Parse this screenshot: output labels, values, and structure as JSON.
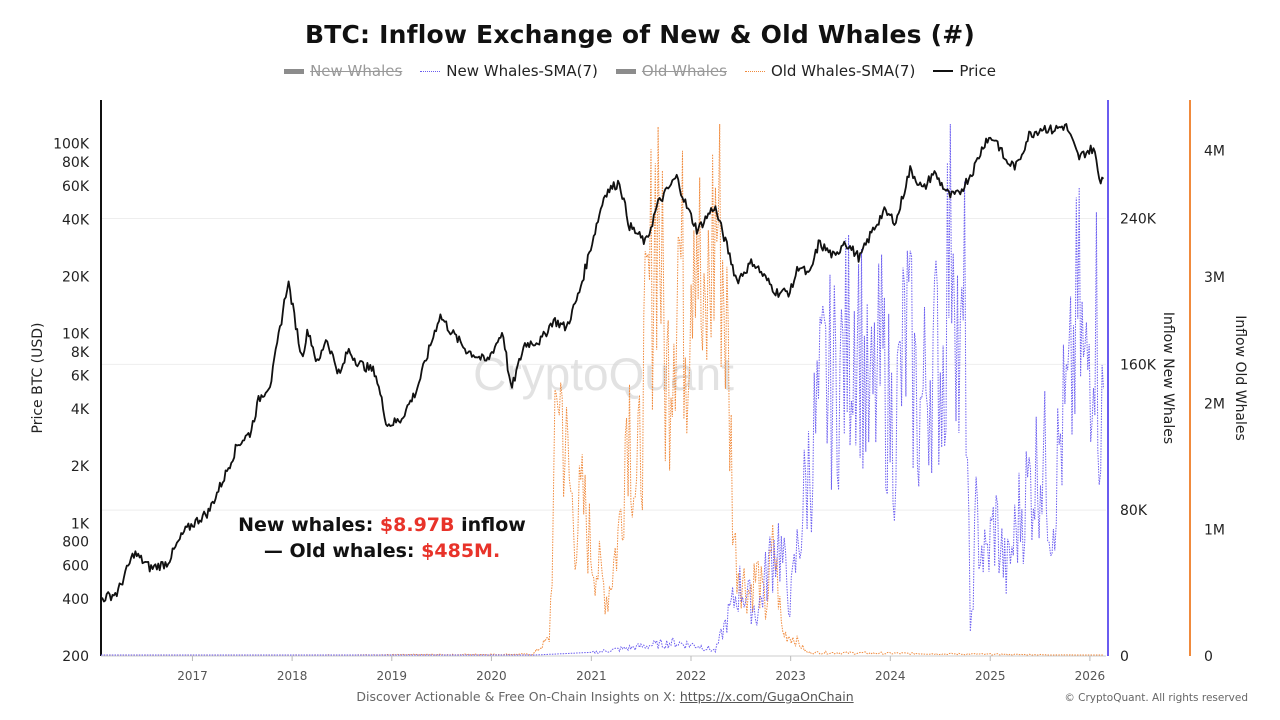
{
  "header": {
    "title": "BTC: Inflow Exchange of New & Old Whales (#)"
  },
  "legend": [
    {
      "label": "New Whales",
      "state": "hidden"
    },
    {
      "label": "New Whales-SMA(7)",
      "state": "visible"
    },
    {
      "label": "Old Whales",
      "state": "hidden"
    },
    {
      "label": "Old Whales-SMA(7)",
      "state": "visible"
    },
    {
      "label": "Price",
      "state": "visible"
    }
  ],
  "annotation": {
    "line1_prefix": "New whales: ",
    "line1_value": "$8.97B",
    "line1_suffix": " inflow",
    "line2_prefix": "— Old whales: ",
    "line2_value": "$485M."
  },
  "watermark": "CryptoQuant",
  "footer": {
    "text": "Discover Actionable & Free On-Chain Insights on X: ",
    "link": "https://x.com/GugaOnChain",
    "copyright": "© CryptoQuant. All rights reserved"
  },
  "colors": {
    "price": "#111111",
    "new_whales": "#6a5cf0",
    "old_whales": "#f08a3c",
    "highlight": "#e8332a"
  },
  "chart_data": {
    "type": "line",
    "x_range": [
      "2016-02",
      "2026-03"
    ],
    "x_ticks": [
      "2017",
      "2018",
      "2019",
      "2020",
      "2021",
      "2022",
      "2023",
      "2024",
      "2025",
      "2026"
    ],
    "axes": {
      "left": {
        "label": "Price BTC (USD)",
        "scale": "log",
        "range": [
          200,
          170000
        ],
        "ticks": [
          "200",
          "400",
          "600",
          "800",
          "1K",
          "2K",
          "4K",
          "6K",
          "8K",
          "10K",
          "20K",
          "40K",
          "60K",
          "80K",
          "100K"
        ]
      },
      "right_new": {
        "label": "Inflow New Whales",
        "scale": "linear",
        "range": [
          0,
          305000
        ],
        "ticks": [
          "0",
          "80K",
          "160K",
          "240K"
        ]
      },
      "right_old": {
        "label": "Inflow Old Whales",
        "scale": "linear",
        "range": [
          0,
          4400000
        ],
        "ticks": [
          "0",
          "1M",
          "2M",
          "3M",
          "4M"
        ]
      }
    },
    "series": [
      {
        "name": "Price",
        "axis": "left",
        "style": "solid",
        "points": [
          [
            "2016-02-01",
            400
          ],
          [
            "2016-04-01",
            430
          ],
          [
            "2016-06-01",
            700
          ],
          [
            "2016-08-01",
            580
          ],
          [
            "2016-10-01",
            620
          ],
          [
            "2016-12-01",
            900
          ],
          [
            "2017-01-05",
            1000
          ],
          [
            "2017-03-01",
            1150
          ],
          [
            "2017-05-01",
            1800
          ],
          [
            "2017-06-15",
            2600
          ],
          [
            "2017-08-01",
            3000
          ],
          [
            "2017-09-01",
            4500
          ],
          [
            "2017-10-15",
            5500
          ],
          [
            "2017-12-17",
            19000
          ],
          [
            "2018-02-05",
            7500
          ],
          [
            "2018-03-01",
            10500
          ],
          [
            "2018-04-05",
            6800
          ],
          [
            "2018-05-05",
            9500
          ],
          [
            "2018-06-25",
            6000
          ],
          [
            "2018-07-25",
            8200
          ],
          [
            "2018-09-01",
            7000
          ],
          [
            "2018-11-01",
            6300
          ],
          [
            "2018-12-15",
            3300
          ],
          [
            "2019-02-01",
            3500
          ],
          [
            "2019-04-01",
            5000
          ],
          [
            "2019-06-26",
            12500
          ],
          [
            "2019-08-01",
            10500
          ],
          [
            "2019-10-01",
            8200
          ],
          [
            "2019-12-15",
            7100
          ],
          [
            "2020-02-12",
            10300
          ],
          [
            "2020-03-13",
            5000
          ],
          [
            "2020-05-01",
            8800
          ],
          [
            "2020-07-01",
            9200
          ],
          [
            "2020-08-15",
            11800
          ],
          [
            "2020-10-01",
            10700
          ],
          [
            "2020-11-15",
            16000
          ],
          [
            "2020-12-31",
            29000
          ],
          [
            "2021-02-20",
            55000
          ],
          [
            "2021-04-14",
            63000
          ],
          [
            "2021-05-20",
            37000
          ],
          [
            "2021-07-20",
            30000
          ],
          [
            "2021-09-01",
            48000
          ],
          [
            "2021-11-09",
            67000
          ],
          [
            "2021-12-15",
            47000
          ],
          [
            "2022-01-24",
            35000
          ],
          [
            "2022-03-28",
            47000
          ],
          [
            "2022-05-12",
            29000
          ],
          [
            "2022-06-18",
            19000
          ],
          [
            "2022-08-15",
            24000
          ],
          [
            "2022-10-01",
            19500
          ],
          [
            "2022-11-10",
            16500
          ],
          [
            "2022-12-31",
            16600
          ],
          [
            "2023-01-31",
            23000
          ],
          [
            "2023-03-10",
            20000
          ],
          [
            "2023-04-14",
            30000
          ],
          [
            "2023-06-15",
            25000
          ],
          [
            "2023-07-14",
            31000
          ],
          [
            "2023-09-11",
            25000
          ],
          [
            "2023-10-24",
            34000
          ],
          [
            "2023-12-08",
            44000
          ],
          [
            "2024-01-23",
            39000
          ],
          [
            "2024-02-28",
            62000
          ],
          [
            "2024-03-14",
            73000
          ],
          [
            "2024-05-01",
            57000
          ],
          [
            "2024-06-07",
            71000
          ],
          [
            "2024-08-05",
            53000
          ],
          [
            "2024-09-06",
            54000
          ],
          [
            "2024-10-29",
            72000
          ],
          [
            "2024-12-17",
            106000
          ],
          [
            "2025-01-21",
            106000
          ],
          [
            "2025-02-28",
            80000
          ],
          [
            "2025-04-08",
            76000
          ],
          [
            "2025-05-22",
            111000
          ],
          [
            "2025-07-14",
            122000
          ],
          [
            "2025-08-15",
            118000
          ],
          [
            "2025-10-06",
            125000
          ],
          [
            "2025-11-21",
            84000
          ],
          [
            "2025-12-15",
            90000
          ],
          [
            "2026-01-15",
            95000
          ],
          [
            "2026-02-05",
            65000
          ],
          [
            "2026-02-20",
            67000
          ]
        ]
      },
      {
        "name": "New Whales-SMA(7)",
        "axis": "right_new",
        "style": "dotted",
        "points": [
          [
            "2016-02-01",
            0
          ],
          [
            "2020-06-01",
            500
          ],
          [
            "2021-01-01",
            2000
          ],
          [
            "2021-06-01",
            5000
          ],
          [
            "2021-11-01",
            8000
          ],
          [
            "2022-02-01",
            6000
          ],
          [
            "2022-04-01",
            3000
          ],
          [
            "2022-06-01",
            30000
          ],
          [
            "2022-07-01",
            42000
          ],
          [
            "2022-09-01",
            25000
          ],
          [
            "2022-10-15",
            55000
          ],
          [
            "2022-11-15",
            70000
          ],
          [
            "2023-01-01",
            32000
          ],
          [
            "2023-03-01",
            105000
          ],
          [
            "2023-05-01",
            160000
          ],
          [
            "2023-07-01",
            165000
          ],
          [
            "2023-09-01",
            210000
          ],
          [
            "2023-10-15",
            140000
          ],
          [
            "2023-12-01",
            175000
          ],
          [
            "2024-01-15",
            130000
          ],
          [
            "2024-03-01",
            195000
          ],
          [
            "2024-04-15",
            140000
          ],
          [
            "2024-06-01",
            180000
          ],
          [
            "2024-07-15",
            170000
          ],
          [
            "2024-08-01",
            250000
          ],
          [
            "2024-08-20",
            290000
          ],
          [
            "2024-09-10",
            150000
          ],
          [
            "2024-10-01",
            210000
          ],
          [
            "2024-10-20",
            10000
          ],
          [
            "2024-11-10",
            80000
          ],
          [
            "2024-12-15",
            55000
          ],
          [
            "2025-01-20",
            80000
          ],
          [
            "2025-03-01",
            48000
          ],
          [
            "2025-04-20",
            85000
          ],
          [
            "2025-06-01",
            105000
          ],
          [
            "2025-07-15",
            120000
          ],
          [
            "2025-08-15",
            80000
          ],
          [
            "2025-09-15",
            130000
          ],
          [
            "2025-10-20",
            150000
          ],
          [
            "2025-11-20",
            210000
          ],
          [
            "2025-12-15",
            155000
          ],
          [
            "2026-01-20",
            225000
          ],
          [
            "2026-02-05",
            145000
          ],
          [
            "2026-02-20",
            140000
          ]
        ]
      },
      {
        "name": "Old Whales-SMA(7)",
        "axis": "right_old",
        "style": "dotted",
        "points": [
          [
            "2016-02-01",
            0
          ],
          [
            "2020-06-01",
            15000
          ],
          [
            "2020-08-01",
            150000
          ],
          [
            "2020-09-01",
            2500000
          ],
          [
            "2020-10-01",
            1700000
          ],
          [
            "2020-11-01",
            1100000
          ],
          [
            "2020-12-01",
            1300000
          ],
          [
            "2021-01-01",
            900000
          ],
          [
            "2021-02-01",
            700000
          ],
          [
            "2021-03-01",
            500000
          ],
          [
            "2021-04-15",
            1100000
          ],
          [
            "2021-05-15",
            2300000
          ],
          [
            "2021-06-15",
            1300000
          ],
          [
            "2021-08-01",
            3000000
          ],
          [
            "2021-09-01",
            4200000
          ],
          [
            "2021-10-01",
            2200000
          ],
          [
            "2021-11-15",
            3600000
          ],
          [
            "2021-12-15",
            2800000
          ],
          [
            "2022-01-15",
            4400000
          ],
          [
            "2022-02-15",
            2400000
          ],
          [
            "2022-03-15",
            3400000
          ],
          [
            "2022-04-15",
            3900000
          ],
          [
            "2022-05-15",
            2600000
          ],
          [
            "2022-06-10",
            900000
          ],
          [
            "2022-07-01",
            700000
          ],
          [
            "2022-08-01",
            550000
          ],
          [
            "2022-09-01",
            700000
          ],
          [
            "2022-10-01",
            400000
          ],
          [
            "2022-11-01",
            950000
          ],
          [
            "2022-12-01",
            200000
          ],
          [
            "2023-01-15",
            150000
          ],
          [
            "2023-03-01",
            30000
          ],
          [
            "2026-02-20",
            5000
          ]
        ]
      }
    ]
  }
}
